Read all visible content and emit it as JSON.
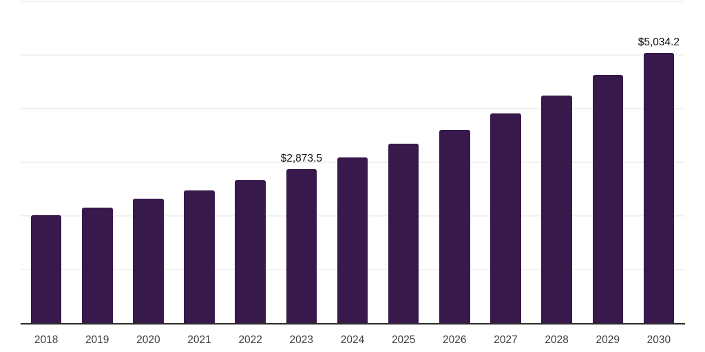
{
  "chart_data": {
    "type": "bar",
    "title": "",
    "xlabel": "",
    "ylabel": "",
    "categories": [
      "2018",
      "2019",
      "2020",
      "2021",
      "2022",
      "2023",
      "2024",
      "2025",
      "2026",
      "2027",
      "2028",
      "2029",
      "2030"
    ],
    "values": [
      2010,
      2150,
      2315,
      2478,
      2665,
      2873.5,
      3090,
      3345,
      3605,
      3910,
      4240,
      4625,
      5034.2
    ],
    "value_labels": {
      "2023": "$2,873.5",
      "2030": "$5,034.2"
    },
    "ylim": [
      0,
      6000
    ],
    "gridline_step": 1000,
    "grid": true,
    "legend": "none",
    "bar_color": "#38194B",
    "gridline_color": "#f1f1f1",
    "axis_line_color": "#2b2b2b",
    "tick_label_color": "#404040",
    "data_label_color": "#0d0d0d"
  }
}
